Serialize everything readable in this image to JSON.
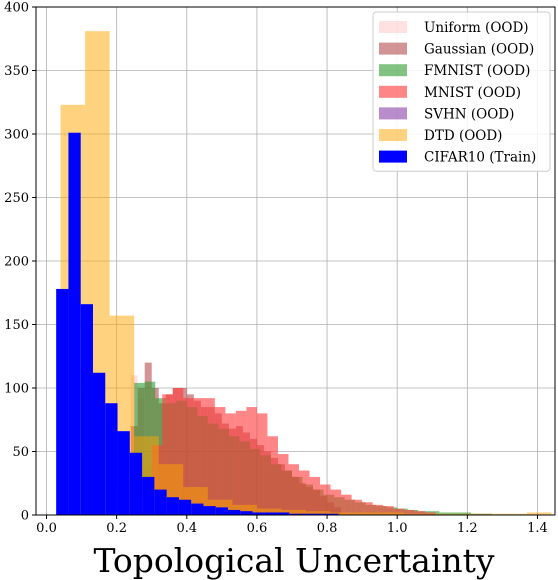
{
  "chart_data": {
    "type": "histogram",
    "title": "",
    "xlabel": "Topological Uncertainty",
    "ylabel": "",
    "xlim": [
      -0.03,
      1.45
    ],
    "ylim": [
      0,
      400
    ],
    "xticks": [
      0.0,
      0.2,
      0.4,
      0.6,
      0.8,
      1.0,
      1.2,
      1.4
    ],
    "xtick_labels": [
      "0.0",
      "0.2",
      "0.4",
      "0.6",
      "0.8",
      "1.0",
      "1.2",
      "1.4"
    ],
    "yticks": [
      0,
      50,
      100,
      150,
      200,
      250,
      300,
      350,
      400
    ],
    "ytick_labels": [
      "0",
      "50",
      "100",
      "150",
      "200",
      "250",
      "300",
      "350",
      "400"
    ],
    "grid": true,
    "legend_position": "top-right",
    "series": [
      {
        "name": "Uniform (OOD)",
        "color": "#ffc8c8",
        "opacity": 0.55,
        "bins": [
          [
            0.22,
            0.24,
            50
          ],
          [
            0.24,
            0.26,
            110
          ],
          [
            0.26,
            0.28,
            92
          ],
          [
            0.28,
            0.3,
            38
          ],
          [
            0.3,
            0.32,
            8
          ]
        ]
      },
      {
        "name": "Gaussian (OOD)",
        "color": "#a52a2a",
        "opacity": 0.5,
        "bins": [
          [
            0.24,
            0.26,
            70
          ],
          [
            0.26,
            0.28,
            100
          ],
          [
            0.28,
            0.3,
            120
          ],
          [
            0.3,
            0.32,
            100
          ],
          [
            0.32,
            0.34,
            88
          ],
          [
            0.34,
            0.36,
            95
          ],
          [
            0.36,
            0.38,
            100
          ],
          [
            0.38,
            0.4,
            100
          ],
          [
            0.4,
            0.42,
            95
          ],
          [
            0.42,
            0.44,
            90
          ],
          [
            0.44,
            0.46,
            85
          ],
          [
            0.46,
            0.48,
            85
          ],
          [
            0.48,
            0.5,
            80
          ],
          [
            0.5,
            0.52,
            72
          ],
          [
            0.52,
            0.54,
            68
          ],
          [
            0.54,
            0.56,
            70
          ],
          [
            0.56,
            0.58,
            65
          ],
          [
            0.58,
            0.6,
            60
          ],
          [
            0.6,
            0.62,
            55
          ],
          [
            0.62,
            0.64,
            50
          ],
          [
            0.64,
            0.66,
            45
          ],
          [
            0.66,
            0.68,
            40
          ],
          [
            0.68,
            0.7,
            35
          ],
          [
            0.7,
            0.72,
            30
          ],
          [
            0.72,
            0.74,
            25
          ],
          [
            0.74,
            0.76,
            22
          ],
          [
            0.76,
            0.78,
            20
          ],
          [
            0.78,
            0.8,
            15
          ],
          [
            0.8,
            0.82,
            10
          ],
          [
            0.82,
            0.84,
            6
          ]
        ]
      },
      {
        "name": "FMNIST (OOD)",
        "color": "#2e9a2e",
        "opacity": 0.6,
        "bins": [
          [
            0.25,
            0.28,
            104
          ],
          [
            0.28,
            0.31,
            105
          ],
          [
            0.31,
            0.34,
            92
          ],
          [
            0.34,
            0.37,
            88
          ],
          [
            0.37,
            0.4,
            90
          ],
          [
            0.4,
            0.43,
            85
          ],
          [
            0.43,
            0.46,
            78
          ],
          [
            0.46,
            0.49,
            72
          ],
          [
            0.49,
            0.52,
            68
          ],
          [
            0.52,
            0.55,
            62
          ],
          [
            0.55,
            0.58,
            58
          ],
          [
            0.58,
            0.61,
            52
          ],
          [
            0.61,
            0.64,
            47
          ],
          [
            0.64,
            0.67,
            40
          ],
          [
            0.67,
            0.7,
            35
          ],
          [
            0.7,
            0.73,
            30
          ],
          [
            0.73,
            0.76,
            24
          ],
          [
            0.76,
            0.79,
            20
          ],
          [
            0.79,
            0.82,
            16
          ],
          [
            0.82,
            0.85,
            14
          ],
          [
            0.85,
            0.88,
            12
          ],
          [
            0.88,
            0.91,
            10
          ],
          [
            0.91,
            0.94,
            8
          ],
          [
            0.94,
            0.97,
            7
          ],
          [
            0.97,
            1.0,
            6
          ],
          [
            1.0,
            1.03,
            5
          ],
          [
            1.03,
            1.06,
            4
          ],
          [
            1.06,
            1.09,
            3
          ],
          [
            1.09,
            1.12,
            3
          ],
          [
            1.12,
            1.15,
            2
          ],
          [
            1.15,
            1.18,
            2
          ],
          [
            1.18,
            1.21,
            2
          ],
          [
            1.21,
            1.24,
            1
          ],
          [
            1.24,
            1.27,
            1
          ]
        ]
      },
      {
        "name": "MNIST (OOD)",
        "color": "#ff3c3c",
        "opacity": 0.62,
        "bins": [
          [
            0.24,
            0.27,
            10
          ],
          [
            0.27,
            0.3,
            26
          ],
          [
            0.3,
            0.33,
            55
          ],
          [
            0.33,
            0.36,
            95
          ],
          [
            0.36,
            0.39,
            100
          ],
          [
            0.39,
            0.42,
            92
          ],
          [
            0.42,
            0.45,
            92
          ],
          [
            0.45,
            0.48,
            92
          ],
          [
            0.48,
            0.51,
            85
          ],
          [
            0.51,
            0.54,
            80
          ],
          [
            0.54,
            0.57,
            82
          ],
          [
            0.57,
            0.6,
            85
          ],
          [
            0.6,
            0.63,
            80
          ],
          [
            0.63,
            0.66,
            62
          ],
          [
            0.66,
            0.69,
            48
          ],
          [
            0.69,
            0.72,
            40
          ],
          [
            0.72,
            0.75,
            35
          ],
          [
            0.75,
            0.78,
            30
          ],
          [
            0.78,
            0.81,
            24
          ],
          [
            0.81,
            0.84,
            20
          ],
          [
            0.84,
            0.87,
            16
          ],
          [
            0.87,
            0.9,
            12
          ],
          [
            0.9,
            0.93,
            10
          ],
          [
            0.93,
            0.96,
            8
          ],
          [
            0.96,
            0.99,
            7
          ],
          [
            0.99,
            1.02,
            5
          ],
          [
            1.02,
            1.05,
            4
          ],
          [
            1.05,
            1.08,
            3
          ],
          [
            1.08,
            1.11,
            2
          ]
        ]
      },
      {
        "name": "SVHN (OOD)",
        "color": "#8b3fa8",
        "opacity": 0.6,
        "bins": [
          [
            0.2,
            0.22,
            20
          ],
          [
            0.22,
            0.24,
            30
          ],
          [
            0.24,
            0.26,
            25
          ],
          [
            0.26,
            0.28,
            15
          ],
          [
            0.28,
            0.3,
            5
          ]
        ]
      },
      {
        "name": "DTD (OOD)",
        "color": "#ffa500",
        "opacity": 0.5,
        "bins": [
          [
            0.04,
            0.11,
            323
          ],
          [
            0.11,
            0.18,
            381
          ],
          [
            0.18,
            0.25,
            157
          ],
          [
            0.25,
            0.32,
            62
          ],
          [
            0.32,
            0.39,
            40
          ],
          [
            0.39,
            0.46,
            22
          ],
          [
            0.46,
            0.53,
            12
          ],
          [
            0.53,
            0.6,
            8
          ],
          [
            0.6,
            0.67,
            5
          ],
          [
            0.67,
            0.74,
            4
          ],
          [
            0.74,
            0.81,
            3
          ],
          [
            0.81,
            0.88,
            2
          ],
          [
            0.88,
            0.95,
            2
          ],
          [
            0.95,
            1.02,
            2
          ],
          [
            1.02,
            1.09,
            1
          ],
          [
            1.09,
            1.16,
            1
          ],
          [
            1.16,
            1.23,
            1
          ],
          [
            1.23,
            1.3,
            1
          ],
          [
            1.3,
            1.37,
            1
          ],
          [
            1.37,
            1.44,
            2
          ]
        ]
      },
      {
        "name": "CIFAR10 (Train)",
        "color": "#0000ff",
        "opacity": 1.0,
        "bins": [
          [
            0.0275,
            0.0625,
            178
          ],
          [
            0.0625,
            0.0975,
            301
          ],
          [
            0.0975,
            0.1325,
            166
          ],
          [
            0.1325,
            0.1675,
            112
          ],
          [
            0.1675,
            0.2025,
            88
          ],
          [
            0.2025,
            0.2375,
            66
          ],
          [
            0.2375,
            0.2725,
            49
          ],
          [
            0.2725,
            0.3075,
            30
          ],
          [
            0.3075,
            0.3425,
            20
          ],
          [
            0.3425,
            0.3775,
            14
          ],
          [
            0.3775,
            0.4125,
            12
          ],
          [
            0.4125,
            0.4475,
            9
          ],
          [
            0.4475,
            0.4825,
            7
          ],
          [
            0.4825,
            0.5175,
            6
          ],
          [
            0.5175,
            0.5525,
            4
          ],
          [
            0.5525,
            0.5875,
            3
          ],
          [
            0.5875,
            0.6225,
            2
          ],
          [
            0.6225,
            0.6575,
            2
          ],
          [
            0.6575,
            0.6925,
            2
          ],
          [
            0.6925,
            0.7275,
            1
          ],
          [
            0.7275,
            0.7625,
            1
          ],
          [
            0.7625,
            0.7975,
            1
          ],
          [
            0.7975,
            0.8325,
            1
          ]
        ]
      }
    ]
  }
}
